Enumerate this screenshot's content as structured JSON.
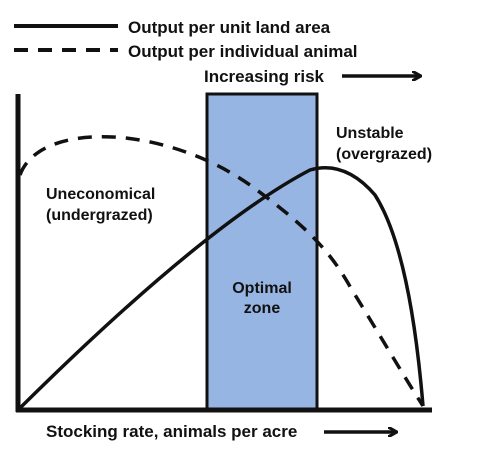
{
  "legend": {
    "solid_label": "Output per unit land area",
    "dashed_label": "Output per individual animal"
  },
  "risk_label": "Increasing risk",
  "xlabel": "Stocking rate, animals per acre",
  "regions": {
    "left_line1": "Uneconomical",
    "left_line2": "(undergrazed)",
    "zone_line1": "Optimal",
    "zone_line2": "zone",
    "right_line1": "Unstable",
    "right_line2": "(overgrazed)"
  },
  "colors": {
    "zone_fill": "#97b5e3",
    "ink": "#111111"
  }
}
